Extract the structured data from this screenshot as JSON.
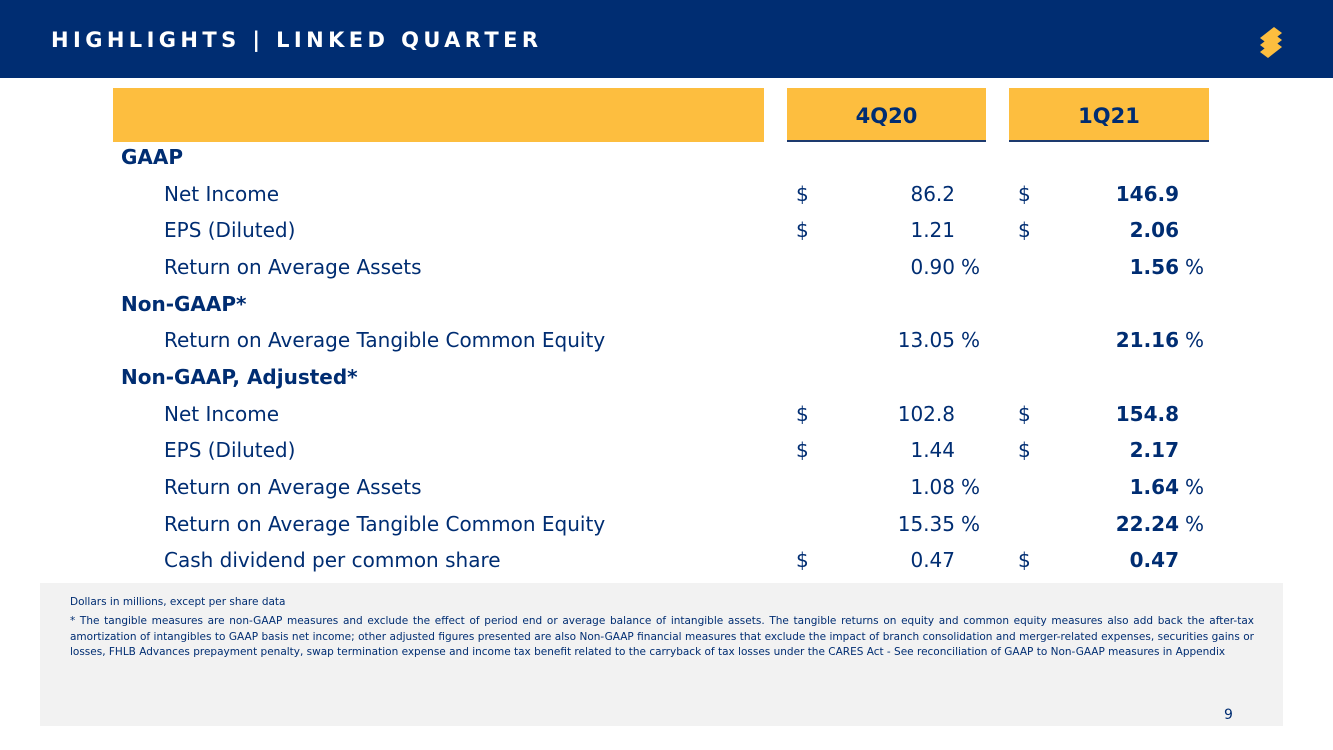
{
  "header": {
    "title": "HIGHLIGHTS | LINKED QUARTER",
    "logo_icon": "s-logo-icon",
    "background": "#002D72",
    "logo_color": "#FDBE3F"
  },
  "table": {
    "col1": "4Q20",
    "col2": "1Q21",
    "accent": "#FDBE3F",
    "gaap": {
      "title": "GAAP",
      "net_income": {
        "label": "Net Income",
        "cur1": "$",
        "v1": "86.2",
        "cur2": "$",
        "v2": "146.9"
      },
      "eps": {
        "label": "EPS (Diluted)",
        "cur1": "$",
        "v1": "1.21",
        "cur2": "$",
        "v2": "2.06"
      },
      "roaa": {
        "label": "Return on Average Assets",
        "v1": "0.90",
        "p1": "%",
        "v2": "1.56",
        "p2": "%"
      }
    },
    "nongaap": {
      "title": "Non-GAAP*",
      "rotce": {
        "label": "Return on Average Tangible Common Equity",
        "v1": "13.05",
        "p1": "%",
        "v2": "21.16",
        "p2": "%"
      }
    },
    "adjusted": {
      "title": "Non-GAAP, Adjusted*",
      "net_income": {
        "label": "Net Income",
        "cur1": "$",
        "v1": "102.8",
        "cur2": "$",
        "v2": "154.8"
      },
      "eps": {
        "label": "EPS (Diluted)",
        "cur1": "$",
        "v1": "1.44",
        "cur2": "$",
        "v2": "2.17"
      },
      "roaa": {
        "label": "Return on Average Assets",
        "v1": "1.08",
        "p1": "%",
        "v2": "1.64",
        "p2": "%"
      },
      "rotce": {
        "label": "Return on Average Tangible Common Equity",
        "v1": "15.35",
        "p1": "%",
        "v2": "22.24",
        "p2": "%"
      },
      "dividend": {
        "label": "Cash dividend per common share",
        "cur1": "$",
        "v1": "0.47",
        "cur2": "$",
        "v2": "0.47"
      }
    }
  },
  "footnotes": {
    "units": "Dollars in millions, except per share data",
    "note": "*   The tangible measures are non-GAAP measures and exclude the effect of period end or average balance of intangible assets. The tangible returns on equity and common equity measures also add back the after-tax amortization of intangibles to GAAP basis net income; other adjusted figures presented are also Non-GAAP financial measures that exclude the impact of branch consolidation and merger-related expenses, securities gains or losses, FHLB Advances prepayment penalty, swap termination expense and income tax benefit related to the carryback of tax losses under the CARES Act - See reconciliation of GAAP to Non-GAAP measures in Appendix"
  },
  "page_number": "9"
}
